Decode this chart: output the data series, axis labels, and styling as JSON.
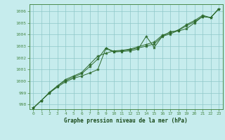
{
  "title": "Graphe pression niveau de la mer (hPa)",
  "background_color": "#c6eced",
  "plot_bg_color": "#c6eced",
  "line_color": "#2d6a2d",
  "marker_color": "#2d6a2d",
  "grid_color": "#8ec8c8",
  "border_color": "#4a8a4a",
  "xlabel_color": "#1a4a1a",
  "xlim": [
    -0.5,
    23.5
  ],
  "ylim": [
    997.6,
    1006.6
  ],
  "yticks": [
    998,
    999,
    1000,
    1001,
    1002,
    1003,
    1004,
    1005,
    1006
  ],
  "xticks": [
    0,
    1,
    2,
    3,
    4,
    5,
    6,
    7,
    8,
    9,
    10,
    11,
    12,
    13,
    14,
    15,
    16,
    17,
    18,
    19,
    20,
    21,
    22,
    23
  ],
  "series": [
    [
      997.7,
      998.35,
      999.0,
      999.5,
      999.95,
      1000.25,
      1000.45,
      1000.7,
      1001.0,
      1002.8,
      1002.5,
      1002.55,
      1002.6,
      1002.75,
      1003.85,
      1002.9,
      1003.85,
      1004.25,
      1004.3,
      1004.5,
      1005.0,
      1005.55,
      1005.45,
      1006.2
    ],
    [
      997.7,
      998.35,
      999.0,
      999.6,
      1000.05,
      1000.35,
      1000.65,
      1001.25,
      1001.9,
      1002.85,
      1002.55,
      1002.6,
      1002.7,
      1002.85,
      1003.0,
      1003.2,
      1003.85,
      1004.05,
      1004.35,
      1004.75,
      1005.1,
      1005.55,
      1005.45,
      1006.2
    ],
    [
      997.7,
      998.35,
      999.05,
      999.6,
      1000.15,
      1000.45,
      1000.75,
      1001.45,
      1002.15,
      1002.4,
      1002.6,
      1002.65,
      1002.75,
      1002.95,
      1003.15,
      1003.35,
      1003.95,
      1004.15,
      1004.4,
      1004.85,
      1005.2,
      1005.65,
      1005.45,
      1006.2
    ]
  ]
}
